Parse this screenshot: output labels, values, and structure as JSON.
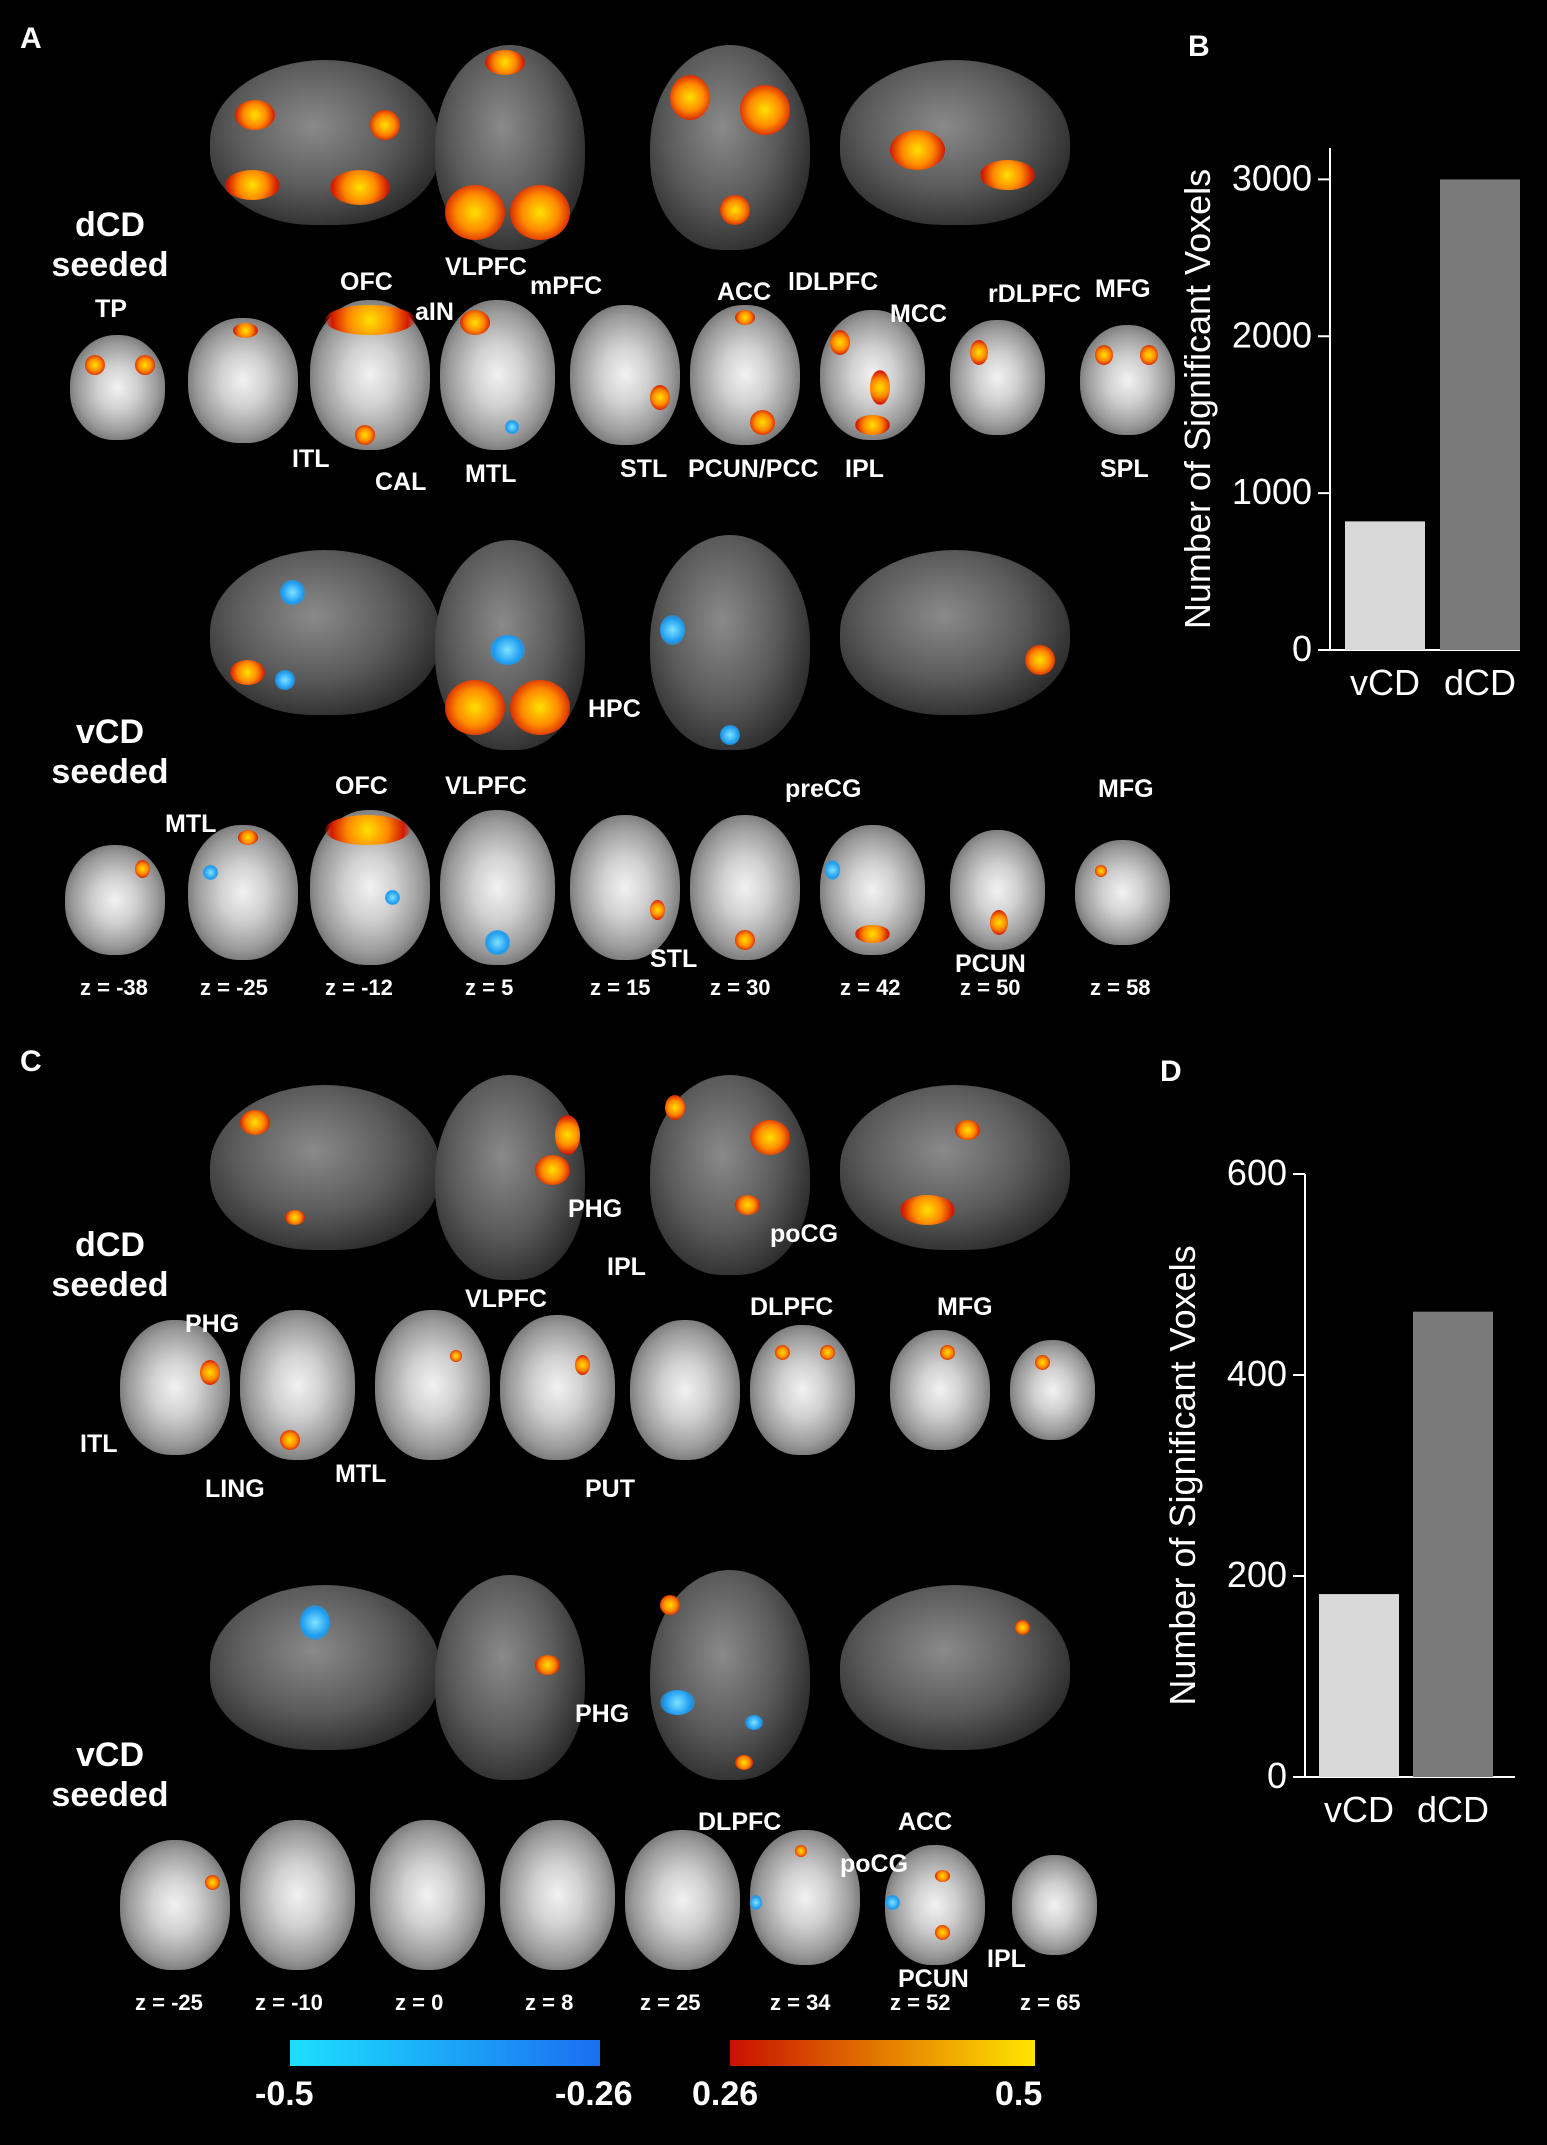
{
  "panels": {
    "A": {
      "letter": "A",
      "dcd_label": [
        "dCD",
        "seeded"
      ],
      "vcd_label": [
        "vCD",
        "seeded"
      ],
      "dcd_regions": [
        "TP",
        "OFC",
        "VLPFC",
        "mPFC",
        "aIN",
        "ACC",
        "lDLPFC",
        "MCC",
        "rDLPFC",
        "MFG",
        "ITL",
        "CAL",
        "MTL",
        "STL",
        "PCUN/PCC",
        "IPL",
        "SPL"
      ],
      "vcd_regions": [
        "HPC",
        "MTL",
        "OFC",
        "VLPFC",
        "preCG",
        "MFG",
        "STL",
        "PCUN"
      ],
      "z_labels": [
        "z = -38",
        "z = -25",
        "z = -12",
        "z = 5",
        "z = 15",
        "z = 30",
        "z = 42",
        "z = 50",
        "z = 58"
      ]
    },
    "C": {
      "letter": "C",
      "dcd_label": [
        "dCD",
        "seeded"
      ],
      "vcd_label": [
        "vCD",
        "seeded"
      ],
      "dcd_regions": [
        "PHG",
        "IPL",
        "poCG",
        "VLPFC",
        "DLPFC",
        "MFG",
        "ITL",
        "LING",
        "MTL",
        "PUT"
      ],
      "vcd_regions": [
        "PHG",
        "DLPFC",
        "ACC",
        "poCG",
        "IPL",
        "PCUN"
      ],
      "z_labels": [
        "z = -25",
        "z = -10",
        "z = 0",
        "z = 8",
        "z = 25",
        "z = 34",
        "z = 52",
        "z = 65"
      ]
    }
  },
  "colorbar": {
    "neg_min": "-0.5",
    "neg_max": "-0.26",
    "pos_min": "0.26",
    "pos_max": "0.5",
    "neg_colors": [
      "#1de0ff",
      "#1a6ff0"
    ],
    "pos_colors": [
      "#c81000",
      "#ffe600"
    ]
  },
  "chart_data": [
    {
      "panel": "B",
      "type": "bar",
      "categories": [
        "vCD",
        "dCD"
      ],
      "values": [
        820,
        3000
      ],
      "ylabel": "Number of Significant Voxels",
      "ylim": [
        0,
        3200
      ],
      "yticks": [
        0,
        1000,
        2000,
        3000
      ],
      "bar_colors": [
        "#d8d8d8",
        "#7a7a7a"
      ],
      "grid": false
    },
    {
      "panel": "D",
      "type": "bar",
      "categories": [
        "vCD",
        "dCD"
      ],
      "values": [
        182,
        463
      ],
      "ylabel": "Number of Significant Voxels",
      "ylim": [
        0,
        600
      ],
      "yticks": [
        0,
        200,
        400,
        600
      ],
      "bar_colors": [
        "#d8d8d8",
        "#7a7a7a"
      ],
      "grid": false
    }
  ]
}
